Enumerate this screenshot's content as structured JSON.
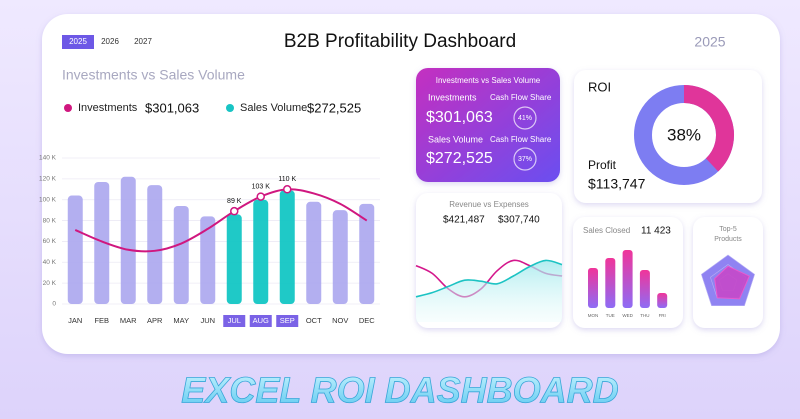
{
  "header": {
    "years": [
      "2025",
      "2026",
      "2027"
    ],
    "title": "B2B Profitability Dashboard",
    "year": "2025"
  },
  "banner": "EXCEL ROI DASHBOARD",
  "kpi_card": {
    "title": "Investments vs Sales Volume",
    "rows": [
      {
        "label": "Investments",
        "share_label": "Cash Flow Share",
        "amount": "$301,063",
        "share": "41%"
      },
      {
        "label": "Sales Volume",
        "share_label": "Cash Flow Share",
        "amount": "$272,525",
        "share": "37%"
      }
    ]
  },
  "roi_card": {
    "profit_label": "Profit",
    "profit": "$113,747"
  },
  "chart_data": [
    {
      "type": "combo",
      "title": "Investments vs Sales Volume",
      "categories": [
        "JAN",
        "FEB",
        "MAR",
        "APR",
        "MAY",
        "JUN",
        "JUL",
        "AUG",
        "SEP",
        "OCT",
        "NOV",
        "DEC"
      ],
      "series": [
        {
          "name": "Investments",
          "total": "$301,063",
          "kind": "line",
          "color": "#d0177f",
          "values": [
            71,
            60,
            52,
            51,
            58,
            72,
            89,
            103,
            110,
            106,
            96,
            80
          ],
          "value_labels": [
            null,
            null,
            null,
            null,
            null,
            null,
            "89 K",
            "103 K",
            "110 K",
            null,
            null,
            null
          ]
        },
        {
          "name": "Sales Volume",
          "total": "$272,525",
          "kind": "bar",
          "color": "#18c4c4",
          "values": [
            104,
            117,
            122,
            114,
            94,
            84,
            86,
            100,
            109,
            98,
            90,
            96
          ],
          "colors": [
            "#aba6ee",
            "#aba6ee",
            "#aba6ee",
            "#aba6ee",
            "#aba6ee",
            "#aba6ee",
            "#13c6c4",
            "#13c6c4",
            "#13c6c4",
            "#aba6ee",
            "#aba6ee",
            "#aba6ee"
          ]
        }
      ],
      "ylim": [
        0,
        140
      ],
      "yticks": [
        0,
        {
          "value": 20,
          "label": "20 K"
        },
        {
          "value": 40,
          "label": "40 K"
        },
        {
          "value": 60,
          "label": "60 K"
        },
        {
          "value": 80,
          "label": "80 K"
        },
        {
          "value": 100,
          "label": "100 K"
        },
        {
          "value": 120,
          "label": "120 K"
        },
        {
          "value": 140,
          "label": "140 K"
        }
      ],
      "grid": true
    },
    {
      "type": "donut",
      "title": "ROI",
      "values": [
        38
      ],
      "value_labels": [
        "38%"
      ],
      "color": "#e0359a",
      "rest_color": "#7d7df2"
    },
    {
      "type": "line",
      "title": "Revenue vs Expenses",
      "series": [
        {
          "total": "$421,487",
          "color": "#d4178c",
          "values": [
            70,
            55,
            25,
            10,
            25,
            60,
            80,
            70,
            55,
            50
          ]
        },
        {
          "total": "$307,740",
          "color": "#1cc3c3",
          "values": [
            10,
            18,
            30,
            42,
            40,
            35,
            50,
            68,
            80,
            72
          ]
        }
      ]
    },
    {
      "type": "bar",
      "title": "Sales Closed",
      "total": "11 423",
      "categories": [
        "MON",
        "TUE",
        "WED",
        "THU",
        "FRI"
      ],
      "values": [
        40,
        50,
        58,
        38,
        15
      ],
      "color": "#e0359a"
    },
    {
      "type": "radar",
      "title_lines": [
        "Top-5",
        "Products"
      ],
      "values": [
        60,
        80,
        70,
        65,
        50
      ],
      "color": "#c548c9"
    }
  ]
}
